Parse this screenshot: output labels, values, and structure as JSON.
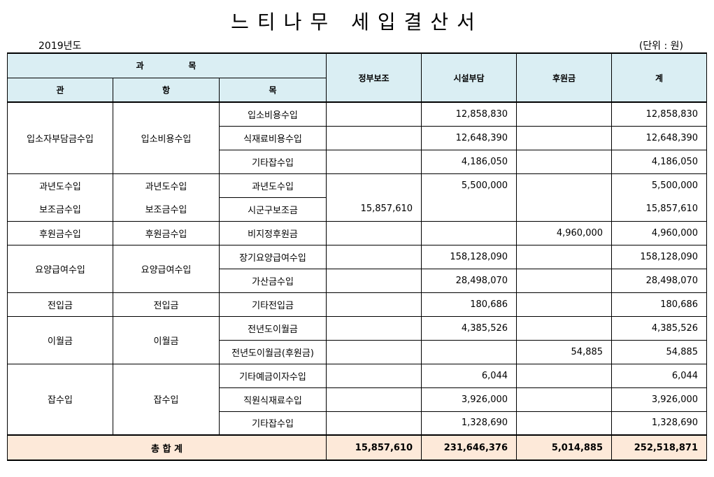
{
  "title": "느티나무 세입결산서",
  "year": "2019년도",
  "unit": "(단위 : 원)",
  "headers": {
    "group": "과          목",
    "gwan": "관",
    "hang": "항",
    "mok": "목",
    "gov": "정부보조",
    "facility": "시설부담",
    "donation": "후원금",
    "total": "계"
  },
  "rows": [
    {
      "gwan": "입소자부담금수입",
      "hang": "입소비용수입",
      "mok": "입소비용수입",
      "gov": "",
      "facility": "12,858,830",
      "donation": "",
      "total": "12,858,830"
    },
    {
      "gwan": "",
      "hang": "",
      "mok": "식재료비용수입",
      "gov": "",
      "facility": "12,648,390",
      "donation": "",
      "total": "12,648,390"
    },
    {
      "gwan": "",
      "hang": "",
      "mok": "기타잡수입",
      "gov": "",
      "facility": "4,186,050",
      "donation": "",
      "total": "4,186,050"
    },
    {
      "gwan": "과년도수입",
      "hang": "과년도수입",
      "mok": "과년도수입",
      "gov": "",
      "facility": "5,500,000",
      "donation": "",
      "total": "5,500,000"
    },
    {
      "gwan": "보조금수입",
      "hang": "보조금수입",
      "mok": "시군구보조금",
      "gov": "15,857,610",
      "facility": "",
      "donation": "",
      "total": "15,857,610"
    },
    {
      "gwan": "후원금수입",
      "hang": "후원금수입",
      "mok": "비지정후원금",
      "gov": "",
      "facility": "",
      "donation": "4,960,000",
      "total": "4,960,000"
    },
    {
      "gwan": "요양급여수입",
      "hang": "요양급여수입",
      "mok": "장기요양급여수입",
      "gov": "",
      "facility": "158,128,090",
      "donation": "",
      "total": "158,128,090"
    },
    {
      "gwan": "",
      "hang": "",
      "mok": "가산금수입",
      "gov": "",
      "facility": "28,498,070",
      "donation": "",
      "total": "28,498,070"
    },
    {
      "gwan": "전입금",
      "hang": "전입금",
      "mok": "기타전입금",
      "gov": "",
      "facility": "180,686",
      "donation": "",
      "total": "180,686"
    },
    {
      "gwan": "이월금",
      "hang": "이월금",
      "mok": "전년도이월금",
      "gov": "",
      "facility": "4,385,526",
      "donation": "",
      "total": "4,385,526"
    },
    {
      "gwan": "",
      "hang": "",
      "mok": "전년도이월금(후원금)",
      "gov": "",
      "facility": "",
      "donation": "54,885",
      "total": "54,885"
    },
    {
      "gwan": "잡수입",
      "hang": "잡수입",
      "mok": "기타예금이자수입",
      "gov": "",
      "facility": "6,044",
      "donation": "",
      "total": "6,044"
    },
    {
      "gwan": "",
      "hang": "",
      "mok": "직원식재료수입",
      "gov": "",
      "facility": "3,926,000",
      "donation": "",
      "total": "3,926,000"
    },
    {
      "gwan": "",
      "hang": "",
      "mok": "기타잡수입",
      "gov": "",
      "facility": "1,328,690",
      "donation": "",
      "total": "1,328,690"
    }
  ],
  "grand_total": {
    "label": "총 합 계",
    "gov": "15,857,610",
    "facility": "231,646,376",
    "donation": "5,014,885",
    "total": "252,518,871"
  }
}
